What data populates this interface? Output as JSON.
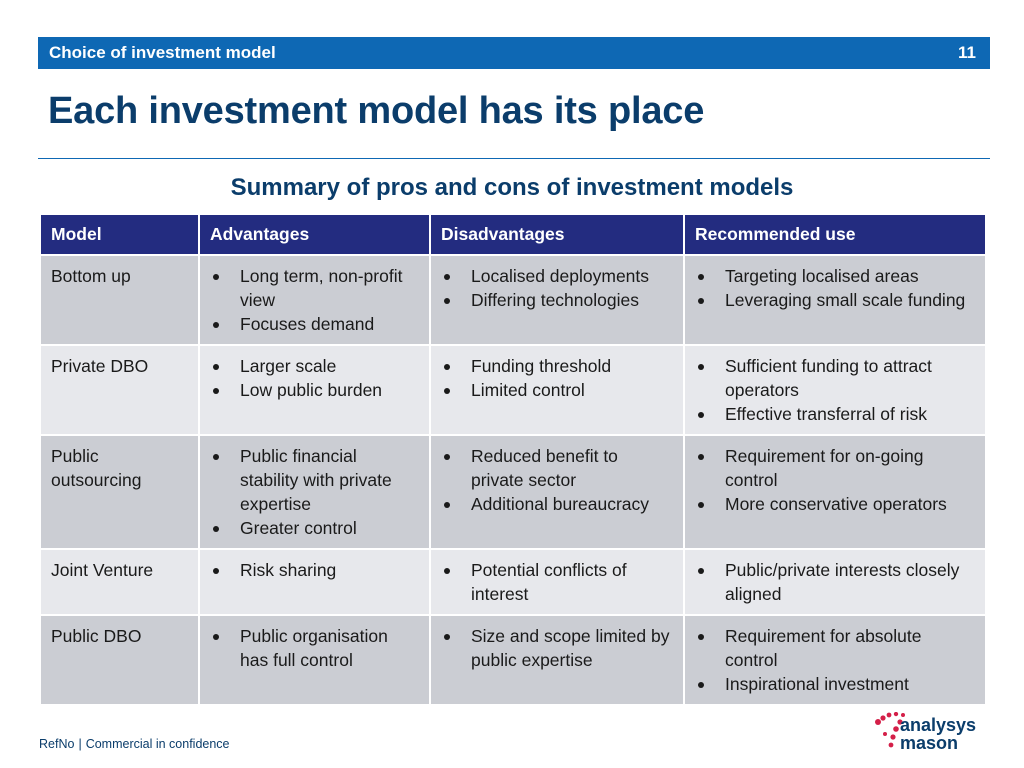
{
  "header": {
    "section_title": "Choice of investment model",
    "page_number": "11"
  },
  "title": "Each investment model has its place",
  "subtitle": "Summary of pros and cons of investment models",
  "table": {
    "columns": [
      "Model",
      "Advantages",
      "Disadvantages",
      "Recommended use"
    ],
    "rows": [
      {
        "model": [
          "Bottom up"
        ],
        "advantages": [
          "Long term, non-profit view",
          "Focuses demand"
        ],
        "disadvantages": [
          "Localised deployments",
          "Differing technologies"
        ],
        "recommended": [
          "Targeting localised areas",
          "Leveraging small scale funding"
        ]
      },
      {
        "model": [
          "Private DBO"
        ],
        "advantages": [
          "Larger scale",
          "Low public burden"
        ],
        "disadvantages": [
          "Funding threshold",
          "Limited control"
        ],
        "recommended": [
          "Sufficient funding to attract operators",
          "Effective transferral of risk"
        ]
      },
      {
        "model": [
          "Public",
          "outsourcing"
        ],
        "advantages": [
          "Public financial stability with private expertise",
          "Greater control"
        ],
        "disadvantages": [
          "Reduced benefit to private sector",
          "Additional bureaucracy"
        ],
        "recommended": [
          "Requirement for on-going control",
          "More conservative operators"
        ]
      },
      {
        "model": [
          "Joint Venture"
        ],
        "advantages": [
          "Risk sharing"
        ],
        "disadvantages": [
          "Potential conflicts of interest"
        ],
        "recommended": [
          "Public/private interests closely aligned"
        ]
      },
      {
        "model": [
          "Public DBO"
        ],
        "advantages": [
          "Public organisation has full control"
        ],
        "disadvantages": [
          "Size and scope limited by public expertise"
        ],
        "recommended": [
          "Requirement for absolute control",
          "Inspirational investment"
        ]
      }
    ]
  },
  "footer": {
    "ref": "RefNo",
    "separator": "|",
    "confidentiality": "Commercial in confidence"
  },
  "logo": {
    "line1": "analysys",
    "line2": "mason",
    "icon": "analysys-mason-dots-logo",
    "accent_color": "#d41f48",
    "brand_color": "#0b3d6b"
  }
}
